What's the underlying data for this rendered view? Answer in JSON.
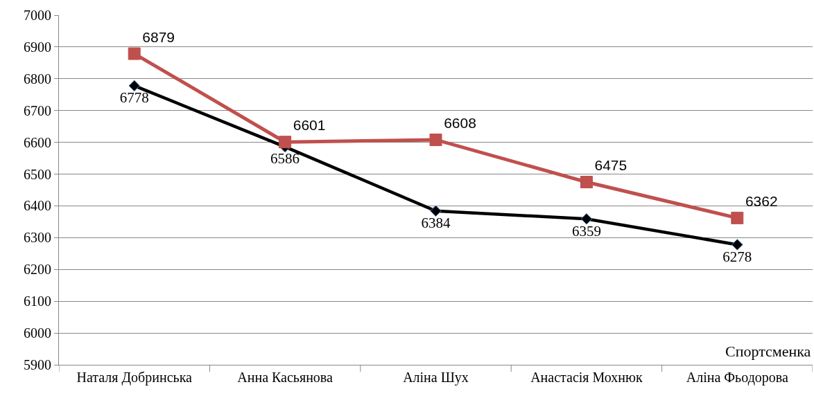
{
  "chart_data": {
    "type": "line",
    "xlabel": "Спортсменка",
    "categories": [
      "Наталя Добринська",
      "Анна Касьянова",
      "Аліна Шух",
      "Анастасія Мохнюк",
      "Аліна Фьодорова"
    ],
    "series": [
      {
        "color": "#000000",
        "marker": "diamond",
        "values": [
          6778,
          6586,
          6384,
          6359,
          6278
        ]
      },
      {
        "color": "#c0504d",
        "marker": "square",
        "values": [
          6879,
          6601,
          6608,
          6475,
          6362
        ]
      }
    ],
    "ylim": [
      5900,
      7000
    ],
    "yticks": [
      5900,
      6000,
      6100,
      6200,
      6300,
      6400,
      6500,
      6600,
      6700,
      6800,
      6900,
      7000
    ],
    "grid": "y",
    "data_labels": true
  }
}
